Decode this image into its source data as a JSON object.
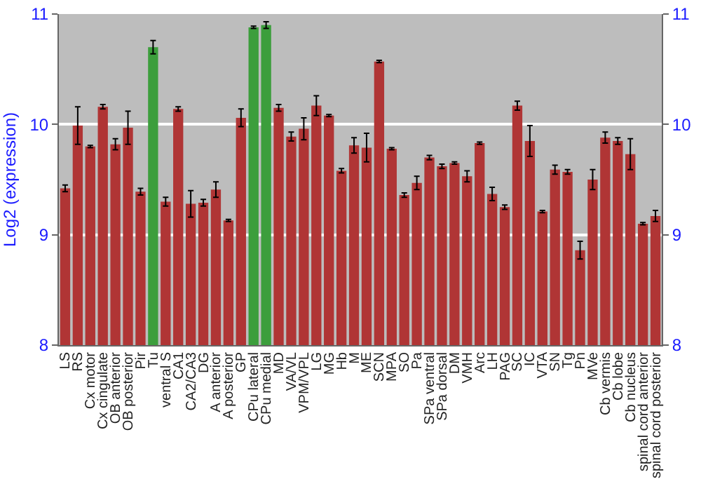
{
  "chart_data": {
    "type": "bar",
    "ylabel": "Log2 (expression)",
    "categories": [
      "LS",
      "RS",
      "Cx motor",
      "Cx cingulate",
      "OB anterior",
      "OB posterior",
      "Pir",
      "Tu",
      "ventral S",
      "CA1",
      "CA2/CA3",
      "DG",
      "A anterior",
      "A posterior",
      "GP",
      "CPu lateral",
      "CPu medial",
      "MD",
      "VA/VL",
      "VPM/VPL",
      "LG",
      "MG",
      "Hb",
      "M",
      "ME",
      "SCN",
      "MPA",
      "SO",
      "Pa",
      "SPa ventral",
      "SPa dorsal",
      "DM",
      "VMH",
      "Arc",
      "LH",
      "PAG",
      "SC",
      "IC",
      "VTA",
      "SN",
      "Tg",
      "Pn",
      "MVe",
      "Cb vermis",
      "Cb lobe",
      "Cb nucleus",
      "spinal cord anterior",
      "spinal cord posterior"
    ],
    "values": [
      9.42,
      9.99,
      9.8,
      10.16,
      9.82,
      9.97,
      9.39,
      10.7,
      9.3,
      10.14,
      9.28,
      9.29,
      9.41,
      9.13,
      10.06,
      10.88,
      10.9,
      10.15,
      9.89,
      9.96,
      10.17,
      10.08,
      9.58,
      9.81,
      9.79,
      10.57,
      9.78,
      9.36,
      9.47,
      9.7,
      9.62,
      9.65,
      9.53,
      9.83,
      9.37,
      9.25,
      10.17,
      9.85,
      9.21,
      9.59,
      9.57,
      8.86,
      9.5,
      9.88,
      9.85,
      9.73,
      9.1,
      9.17
    ],
    "errors": [
      0.03,
      0.17,
      0.01,
      0.02,
      0.05,
      0.15,
      0.03,
      0.06,
      0.04,
      0.02,
      0.12,
      0.03,
      0.07,
      0.01,
      0.08,
      0.01,
      0.03,
      0.03,
      0.04,
      0.1,
      0.09,
      0.01,
      0.02,
      0.07,
      0.13,
      0.01,
      0.01,
      0.02,
      0.06,
      0.02,
      0.02,
      0.01,
      0.05,
      0.01,
      0.06,
      0.02,
      0.04,
      0.14,
      0.01,
      0.04,
      0.02,
      0.08,
      0.09,
      0.05,
      0.03,
      0.14,
      0.01,
      0.05
    ],
    "colors": [
      "#b03535",
      "#b03535",
      "#b03535",
      "#b03535",
      "#b03535",
      "#b03535",
      "#b03535",
      "#3c9e3c",
      "#b03535",
      "#b03535",
      "#b03535",
      "#b03535",
      "#b03535",
      "#b03535",
      "#b03535",
      "#3c9e3c",
      "#3c9e3c",
      "#b03535",
      "#b03535",
      "#b03535",
      "#b03535",
      "#b03535",
      "#b03535",
      "#b03535",
      "#b03535",
      "#b03535",
      "#b03535",
      "#b03535",
      "#b03535",
      "#b03535",
      "#b03535",
      "#b03535",
      "#b03535",
      "#b03535",
      "#b03535",
      "#b03535",
      "#b03535",
      "#b03535",
      "#b03535",
      "#b03535",
      "#b03535",
      "#b03535",
      "#b03535",
      "#b03535",
      "#b03535",
      "#b03535",
      "#b03535",
      "#b03535"
    ],
    "ylim": [
      8,
      11
    ],
    "yticks": [
      8,
      9,
      10,
      11
    ],
    "y2lim": [
      8,
      11
    ],
    "y2ticks": [
      8,
      9,
      10,
      11
    ],
    "grid": "y"
  }
}
